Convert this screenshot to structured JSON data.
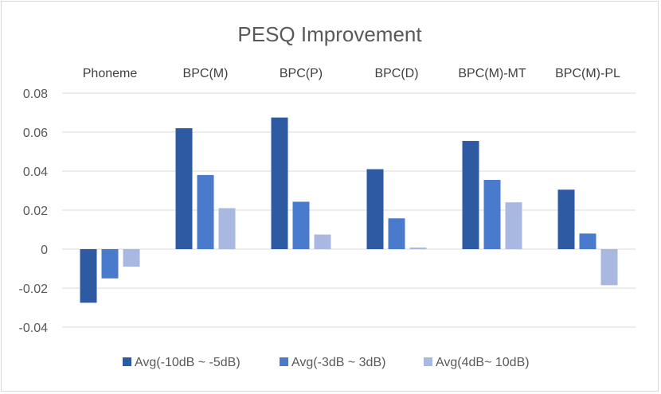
{
  "chart_data": {
    "type": "bar",
    "title": "PESQ Improvement",
    "categories": [
      "Phoneme",
      "BPC(M)",
      "BPC(P)",
      "BPC(D)",
      "BPC(M)-MT",
      "BPC(M)-PL"
    ],
    "series": [
      {
        "name": "Avg(-10dB ~ -5dB)",
        "color": "#2e5aa3",
        "values": [
          -0.0275,
          0.062,
          0.0675,
          0.041,
          0.0555,
          0.0305
        ]
      },
      {
        "name": "Avg(-3dB ~ 3dB)",
        "color": "#4a7acc",
        "values": [
          -0.015,
          0.038,
          0.0243,
          0.0158,
          0.0355,
          0.008
        ]
      },
      {
        "name": "Avg(4dB~ 10dB)",
        "color": "#a9b8e0",
        "values": [
          -0.009,
          0.021,
          0.0075,
          0.0008,
          0.024,
          -0.0185
        ]
      }
    ],
    "ylim": [
      -0.04,
      0.08
    ],
    "yticks": [
      0.08,
      0.06,
      0.04,
      0.02,
      0,
      -0.02,
      -0.04
    ],
    "ytick_labels": [
      "0.08",
      "0.06",
      "0.04",
      "0.02",
      "0",
      "-0.02",
      "-0.04"
    ],
    "xlabel": "",
    "ylabel": "",
    "grid": true,
    "legend_position": "bottom",
    "category_label_position": "top"
  }
}
